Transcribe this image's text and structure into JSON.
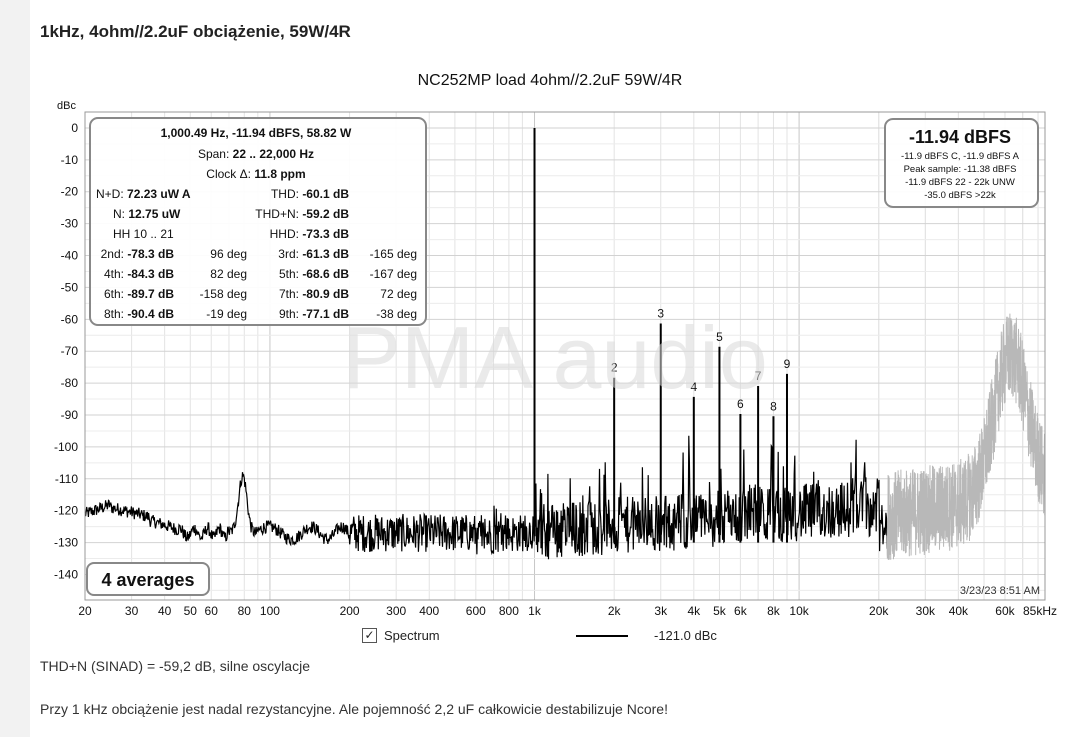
{
  "page": {
    "heading": "1kHz, 4ohm//2.2uF obciążenie, 59W/4R",
    "caption1": "THD+N (SINAD) = -59,2 dB, silne oscylacje",
    "caption2": "Przy 1 kHz obciążenie jest nadal rezystancyjne. Ale pojemność 2,2 uF całkowicie destabilizuje Ncore!"
  },
  "chart_data": {
    "type": "line",
    "title": "NC252MP load 4ohm//2.2uF 59W/4R",
    "ylabel": "dBc",
    "xscale": "log",
    "xlim": [
      20,
      85000
    ],
    "ylim": [
      -148,
      5
    ],
    "grid": true,
    "y_ticks": [
      0,
      -10,
      -20,
      -30,
      -40,
      -50,
      -60,
      -70,
      -80,
      -90,
      -100,
      -110,
      -120,
      -130,
      -140
    ],
    "y_tick_labels": [
      "0",
      "-10",
      "-20",
      "-30",
      "-40",
      "-50",
      "-60",
      "-70",
      "-80",
      "-90",
      "-100",
      "-110",
      "-120",
      "-130",
      "-140"
    ],
    "x_ticks": [
      20,
      30,
      40,
      50,
      60,
      80,
      100,
      200,
      300,
      400,
      600,
      800,
      1000,
      2000,
      3000,
      4000,
      5000,
      6000,
      8000,
      10000,
      20000,
      30000,
      40000,
      60000,
      85000
    ],
    "x_tick_labels": [
      "20",
      "30",
      "40",
      "50",
      "60",
      "80",
      "100",
      "200",
      "300",
      "400",
      "600",
      "800",
      "1k",
      "2k",
      "3k",
      "4k",
      "5k",
      "6k",
      "8k",
      "10k",
      "20k",
      "30k",
      "40k",
      "60k",
      "85kHz"
    ],
    "fundamental": {
      "freq": 1000,
      "level": 0
    },
    "harmonics": [
      {
        "label": "2",
        "freq": 2000,
        "level": -78.3
      },
      {
        "label": "3",
        "freq": 3000,
        "level": -61.3
      },
      {
        "label": "4",
        "freq": 4000,
        "level": -84.3
      },
      {
        "label": "5",
        "freq": 5000,
        "level": -68.6
      },
      {
        "label": "6",
        "freq": 6000,
        "level": -89.7
      },
      {
        "label": "7",
        "freq": 7000,
        "level": -80.9
      },
      {
        "label": "8",
        "freq": 8000,
        "level": -90.4
      },
      {
        "label": "9",
        "freq": 9000,
        "level": -77.1
      }
    ],
    "legend": {
      "checkbox": "✓",
      "series_name": "Spectrum",
      "value": "-121.0 dBc"
    },
    "watermark": "PMA audio",
    "averages": "4 averages",
    "timestamp": "3/23/23 8:51 AM",
    "info_box": {
      "head": "1,000.49 Hz, -11.94 dBFS, 58.82 W",
      "span_label": "Span: ",
      "span_value": "22 .. 22,000 Hz",
      "clock_label": "Clock Δ: ",
      "clock_value": "11.8 ppm",
      "nd_label": "N+D: ",
      "nd_value": "72.23 uW A",
      "thd_label": "THD: ",
      "thd_value": "-60.1 dB",
      "n_label": "N: ",
      "n_value": "12.75 uW",
      "thdn_label": "THD+N: ",
      "thdn_value": "-59.2 dB",
      "hh": "HH 10 .. 21",
      "hhd_label": "HHD: ",
      "hhd_value": "-73.3 dB",
      "harm_rows": [
        {
          "l1": "2nd: ",
          "v1": "-78.3 dB",
          "p1": "96 deg",
          "l2": "3rd: ",
          "v2": "-61.3 dB",
          "p2": "-165 deg"
        },
        {
          "l1": "4th: ",
          "v1": "-84.3 dB",
          "p1": "82 deg",
          "l2": "5th: ",
          "v2": "-68.6 dB",
          "p2": "-167 deg"
        },
        {
          "l1": "6th: ",
          "v1": "-89.7 dB",
          "p1": "-158 deg",
          "l2": "7th: ",
          "v2": "-80.9 dB",
          "p2": "72 deg"
        },
        {
          "l1": "8th: ",
          "v1": "-90.4 dB",
          "p1": "-19 deg",
          "l2": "9th: ",
          "v2": "-77.1 dB",
          "p2": "-38 deg"
        }
      ]
    },
    "level_box": {
      "main": "-11.94 dBFS",
      "line1": "-11.9 dBFS C, -11.9 dBFS A",
      "line2": "Peak sample: -11.38 dBFS",
      "line3": "-11.9 dBFS 22 - 22k UNW",
      "line4": "-35.0 dBFS >22k"
    }
  }
}
